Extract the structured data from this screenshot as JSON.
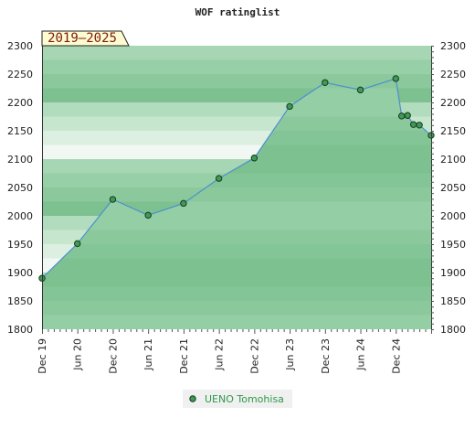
{
  "colors": {
    "band_light_1": "#f1f8f3",
    "band_light_2": "#dcefe1",
    "band_light_3": "#c6e6ce",
    "band_light_4": "#b2dcbe",
    "band_dark_1": "#a6d6b3",
    "band_dark_2": "#97cfa6",
    "band_dark_3": "#8bc99c",
    "band_dark_4": "#7cc18f",
    "line": "#4d8fd0",
    "marker_fill": "#3f9a55",
    "marker_stroke": "#173a1f",
    "badge_fill": "#fffbd0",
    "legend_bg": "#f0f0f0"
  },
  "chart_data": {
    "type": "area",
    "title": "WOF ratinglist",
    "badge": "2019–2025",
    "ylim": [
      1800,
      2300
    ],
    "yticks": [
      1800,
      1850,
      1900,
      1950,
      2000,
      2050,
      2100,
      2150,
      2200,
      2250,
      2300
    ],
    "x_range": [
      0,
      66
    ],
    "xticks": [
      {
        "x": 0,
        "label": "Dec 19"
      },
      {
        "x": 6,
        "label": "Jun 20"
      },
      {
        "x": 12,
        "label": "Dec 20"
      },
      {
        "x": 18,
        "label": "Jun 21"
      },
      {
        "x": 24,
        "label": "Dec 21"
      },
      {
        "x": 30,
        "label": "Jun 22"
      },
      {
        "x": 36,
        "label": "Dec 22"
      },
      {
        "x": 42,
        "label": "Jun 23"
      },
      {
        "x": 48,
        "label": "Dec 23"
      },
      {
        "x": 54,
        "label": "Jun 24"
      },
      {
        "x": 60,
        "label": "Dec 24"
      }
    ],
    "grid": false,
    "legend_placement": "bottom-center",
    "series": [
      {
        "name": "UENO Tomohisa",
        "points": [
          {
            "x": 0,
            "y": 1890
          },
          {
            "x": 6,
            "y": 1951
          },
          {
            "x": 12,
            "y": 2029
          },
          {
            "x": 18,
            "y": 2001
          },
          {
            "x": 24,
            "y": 2022
          },
          {
            "x": 30,
            "y": 2066
          },
          {
            "x": 36,
            "y": 2102
          },
          {
            "x": 42,
            "y": 2193
          },
          {
            "x": 48,
            "y": 2235
          },
          {
            "x": 54,
            "y": 2222
          },
          {
            "x": 60,
            "y": 2242
          },
          {
            "x": 61,
            "y": 2176
          },
          {
            "x": 62,
            "y": 2177
          },
          {
            "x": 63,
            "y": 2161
          },
          {
            "x": 64,
            "y": 2160
          },
          {
            "x": 66,
            "y": 2142
          }
        ]
      }
    ]
  }
}
